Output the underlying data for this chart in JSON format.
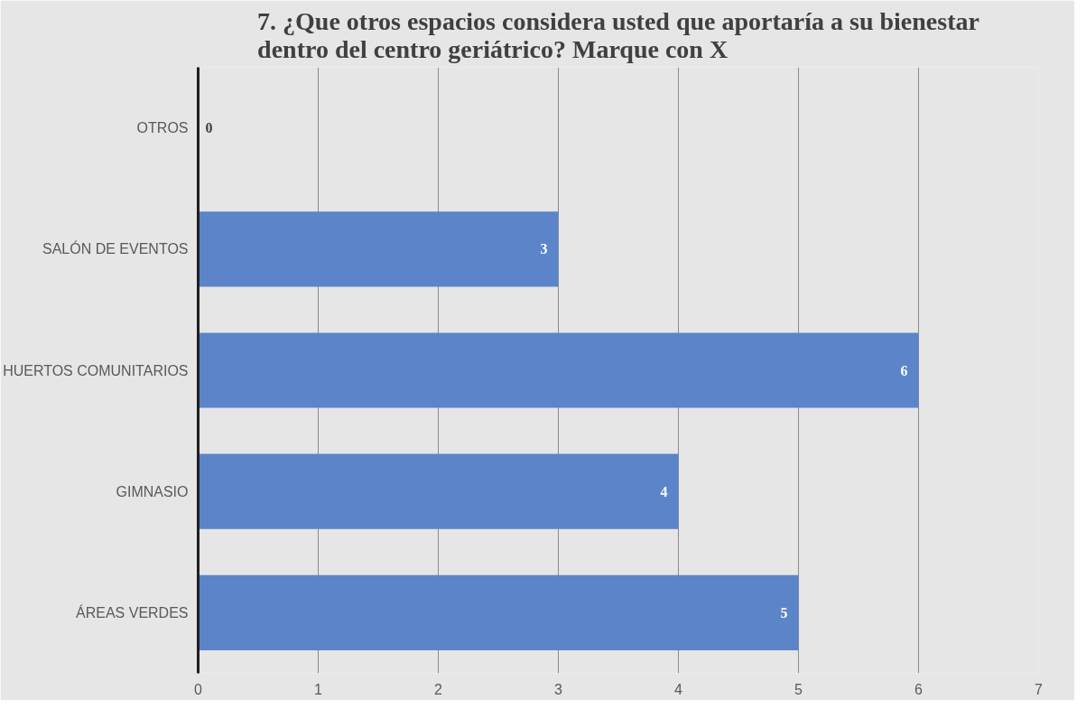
{
  "chart_data": {
    "type": "bar",
    "orientation": "horizontal",
    "title": "7. ¿Que otros espacios considera usted que aportaría a su bienestar\ndentro del centro geriátrico? Marque con X",
    "categories": [
      "OTROS",
      "SALÓN DE EVENTOS",
      "HUERTOS COMUNITARIOS",
      "GIMNASIO",
      "ÁREAS VERDES"
    ],
    "values": [
      0,
      3,
      6,
      4,
      5
    ],
    "color": "#5b84c9",
    "xlim": [
      0,
      7
    ],
    "xticks": [
      0,
      1,
      2,
      3,
      4,
      5,
      6,
      7
    ],
    "grid": "x",
    "data_labels": true
  }
}
